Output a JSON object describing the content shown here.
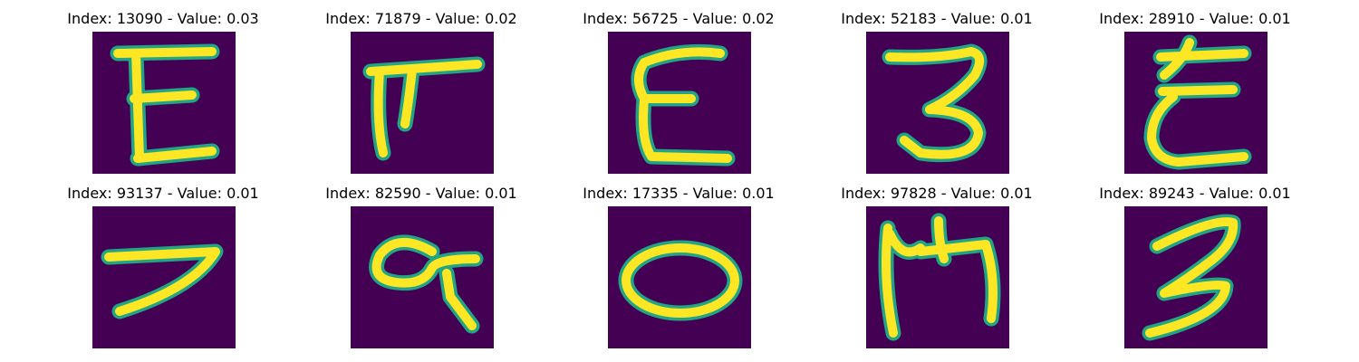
{
  "colors": {
    "background": "#440154",
    "stroke_edge": "#21a585",
    "stroke_core": "#fde725",
    "title": "#000000"
  },
  "grid": {
    "rows": 2,
    "columns": 5,
    "images": [
      {
        "title": "Index: 13090 - Value: 0.03",
        "index": 13090,
        "value": 0.03,
        "glyph": "E"
      },
      {
        "title": "Index: 71879 - Value: 0.02",
        "index": 71879,
        "value": 0.02,
        "glyph": "ㅠ-like"
      },
      {
        "title": "Index: 56725 - Value: 0.02",
        "index": 56725,
        "value": 0.02,
        "glyph": "E"
      },
      {
        "title": "Index: 52183 - Value: 0.01",
        "index": 52183,
        "value": 0.01,
        "glyph": "3"
      },
      {
        "title": "Index: 28910 - Value: 0.01",
        "index": 28910,
        "value": 0.01,
        "glyph": "E"
      },
      {
        "title": "Index: 93137 - Value: 0.01",
        "index": 93137,
        "value": 0.01,
        "glyph": "7"
      },
      {
        "title": "Index: 82590 - Value: 0.01",
        "index": 82590,
        "value": 0.01,
        "glyph": "a"
      },
      {
        "title": "Index: 17335 - Value: 0.01",
        "index": 17335,
        "value": 0.01,
        "glyph": "O"
      },
      {
        "title": "Index: 97828 - Value: 0.01",
        "index": 97828,
        "value": 0.01,
        "glyph": "M"
      },
      {
        "title": "Index: 89243 - Value: 0.01",
        "index": 89243,
        "value": 0.01,
        "glyph": "3"
      }
    ]
  }
}
